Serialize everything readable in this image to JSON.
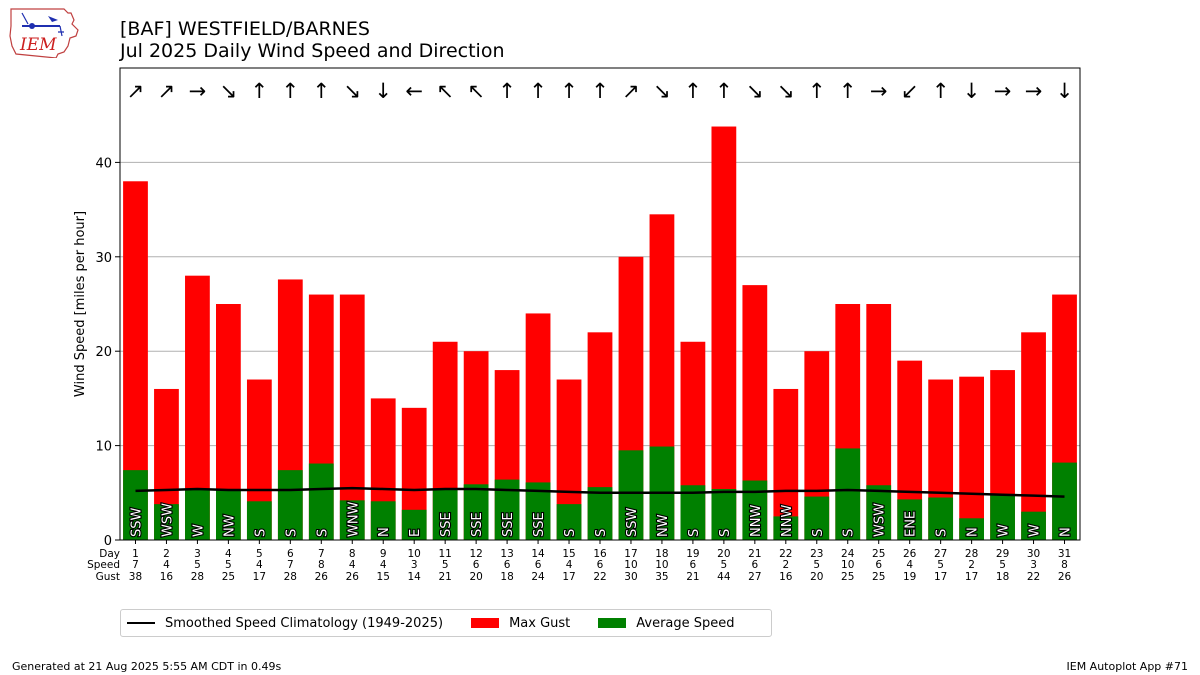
{
  "logo_text": "IEM",
  "title_line1": "[BAF] WESTFIELD/BARNES",
  "title_line2": "Jul 2025 Daily Wind Speed and Direction",
  "footer_left": "Generated at 21 Aug 2025 5:55 AM CDT in 0.49s",
  "footer_right": "IEM Autoplot App #71",
  "legend": {
    "climatology_label": "Smoothed Speed Climatology (1949-2025)",
    "gust_label": "Max Gust",
    "average_label": "Average Speed"
  },
  "colors": {
    "gust": "#ff0000",
    "average": "#008000",
    "climatology": "#000000",
    "grid": "#b0b0b0"
  },
  "chart_data": {
    "type": "bar",
    "ylabel": "Wind Speed [miles per hour]",
    "ylim": [
      0,
      50
    ],
    "yticks": [
      0,
      10,
      20,
      30,
      40
    ],
    "grid": true,
    "legend_position": "bottom",
    "row_labels": [
      "Day",
      "Speed",
      "Gust"
    ],
    "days": [
      1,
      2,
      3,
      4,
      5,
      6,
      7,
      8,
      9,
      10,
      11,
      12,
      13,
      14,
      15,
      16,
      17,
      18,
      19,
      20,
      21,
      22,
      23,
      24,
      25,
      26,
      27,
      28,
      29,
      30,
      31
    ],
    "speed_labels": [
      7,
      4,
      5,
      5,
      4,
      7,
      8,
      4,
      4,
      3,
      5,
      6,
      6,
      6,
      4,
      6,
      10,
      10,
      6,
      5,
      6,
      2,
      5,
      10,
      6,
      4,
      5,
      2,
      5,
      3,
      8
    ],
    "gust_labels": [
      38,
      16,
      28,
      25,
      17,
      28,
      26,
      26,
      15,
      14,
      21,
      20,
      18,
      24,
      17,
      22,
      30,
      35,
      21,
      44,
      27,
      16,
      20,
      25,
      25,
      19,
      17,
      17,
      18,
      22,
      26
    ],
    "series": [
      {
        "name": "Max Gust",
        "values": [
          38,
          16,
          28,
          25,
          17,
          27.6,
          26,
          26,
          15,
          14,
          21,
          20,
          18,
          24,
          17,
          22,
          30,
          34.5,
          21,
          43.8,
          27,
          16,
          20,
          25,
          25,
          19,
          17,
          17.3,
          18,
          22,
          26
        ]
      },
      {
        "name": "Average Speed",
        "values": [
          7.4,
          3.8,
          5.3,
          5.3,
          4.1,
          7.4,
          8.1,
          4.2,
          4.1,
          3.2,
          5.3,
          5.9,
          6.4,
          6.1,
          3.8,
          5.6,
          9.5,
          9.9,
          5.8,
          5.4,
          6.3,
          2.5,
          4.6,
          9.7,
          5.8,
          4.3,
          4.5,
          2.3,
          4.8,
          3.0,
          8.2
        ]
      },
      {
        "name": "Smoothed Speed Climatology (1949-2025)",
        "values": [
          5.2,
          5.3,
          5.4,
          5.3,
          5.3,
          5.3,
          5.4,
          5.5,
          5.4,
          5.3,
          5.4,
          5.4,
          5.3,
          5.2,
          5.1,
          5.0,
          5.0,
          5.0,
          5.0,
          5.1,
          5.1,
          5.2,
          5.2,
          5.3,
          5.2,
          5.1,
          5.0,
          4.9,
          4.8,
          4.7,
          4.6
        ]
      }
    ],
    "direction_labels": [
      "SSW",
      "WSW",
      "W",
      "NW",
      "S",
      "S",
      "S",
      "WNW",
      "N",
      "E",
      "SSE",
      "SSE",
      "SSE",
      "SSE",
      "S",
      "S",
      "SSW",
      "NW",
      "S",
      "S",
      "NNW",
      "NNW",
      "S",
      "S",
      "WSW",
      "ENE",
      "S",
      "N",
      "W",
      "W",
      "N"
    ],
    "arrows": [
      "↗",
      "↗",
      "→",
      "↘",
      "↑",
      "↑",
      "↑",
      "↘",
      "↓",
      "←",
      "↖",
      "↖",
      "↑",
      "↑",
      "↑",
      "↑",
      "↗",
      "↘",
      "↑",
      "↑",
      "↘",
      "↘",
      "↑",
      "↑",
      "→",
      "↙",
      "↑",
      "↓",
      "→",
      "→",
      "↓"
    ]
  }
}
